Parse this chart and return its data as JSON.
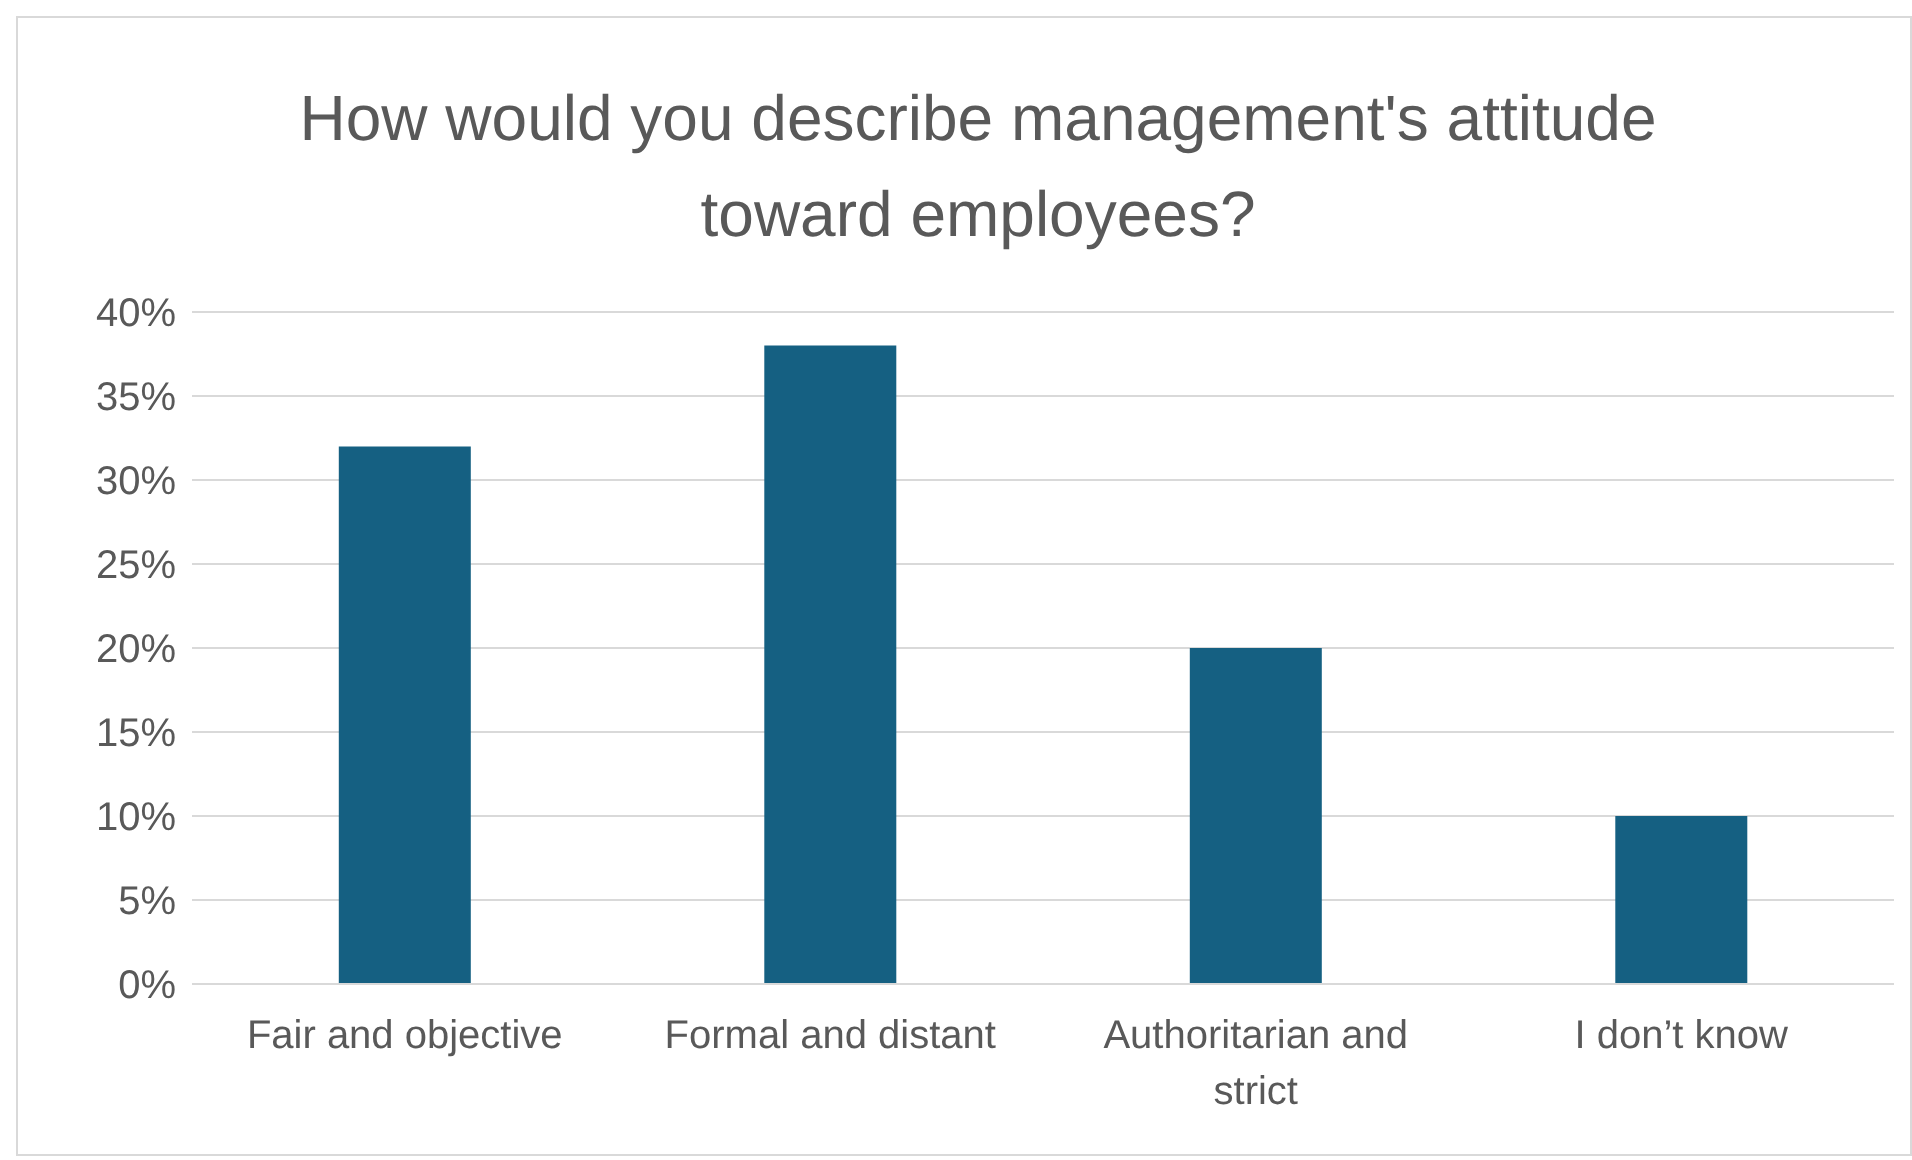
{
  "chart_data": {
    "type": "bar",
    "title": "How would you describe management's attitude toward employees?",
    "categories": [
      "Fair and objective",
      "Formal and distant",
      "Authoritarian and strict",
      "I don’t know"
    ],
    "values": [
      32,
      38,
      20,
      10
    ],
    "color": "#156082",
    "ylim": [
      0,
      40
    ],
    "yticks": [
      {
        "value": 0,
        "label": "0%"
      },
      {
        "value": 5,
        "label": "5%"
      },
      {
        "value": 10,
        "label": "10%"
      },
      {
        "value": 15,
        "label": "15%"
      },
      {
        "value": 20,
        "label": "20%"
      },
      {
        "value": 25,
        "label": "25%"
      },
      {
        "value": 30,
        "label": "30%"
      },
      {
        "value": 35,
        "label": "35%"
      },
      {
        "value": 40,
        "label": "40%"
      }
    ],
    "grid": "y",
    "legend": false
  }
}
